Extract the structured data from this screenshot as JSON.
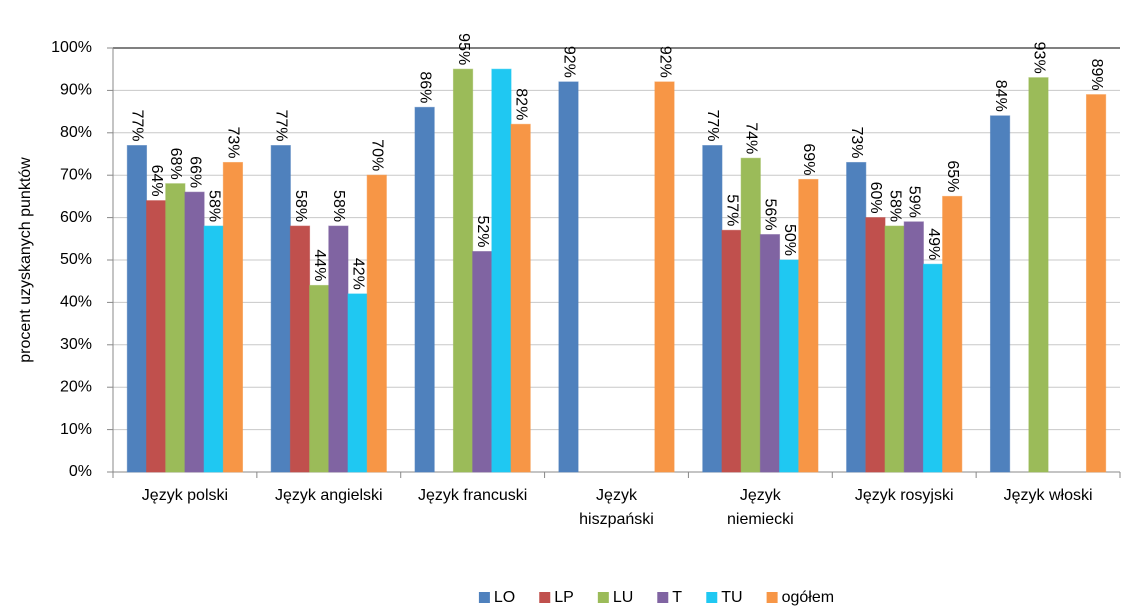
{
  "chart_data": {
    "type": "bar",
    "ylabel": "procent uzyskanych punktów",
    "categories": [
      "Język polski",
      "Język angielski",
      "Język francuski",
      "Język\nhiszpański",
      "Język\nniemiecki",
      "Język rosyjski",
      "Język włoski"
    ],
    "series": [
      {
        "name": "LO",
        "color": "#4f81bd",
        "values": [
          77,
          77,
          86,
          92,
          77,
          73,
          84
        ],
        "value_labels": [
          "77%",
          "77%",
          "86%",
          "92%",
          "77%",
          "73%",
          "84%"
        ]
      },
      {
        "name": "LP",
        "color": "#c0504d",
        "values": [
          64,
          58,
          null,
          null,
          57,
          60,
          null
        ],
        "value_labels": [
          "64%",
          "58%",
          null,
          null,
          "57%",
          "60%",
          null
        ]
      },
      {
        "name": "LU",
        "color": "#9bbb59",
        "values": [
          68,
          44,
          95,
          null,
          74,
          58,
          93
        ],
        "value_labels": [
          "68%",
          "44%",
          "95%",
          null,
          "74%",
          "58%",
          "93%"
        ]
      },
      {
        "name": "T",
        "color": "#8064a2",
        "values": [
          66,
          58,
          52,
          null,
          56,
          59,
          null
        ],
        "value_labels": [
          "66%",
          "58%",
          "52%",
          null,
          "56%",
          "59%",
          null
        ]
      },
      {
        "name": "TU",
        "color": "#1fc8f2",
        "values": [
          58,
          42,
          95,
          null,
          50,
          49,
          null
        ],
        "value_labels": [
          "58%",
          "42%",
          null,
          null,
          "50%",
          "49%",
          null
        ]
      },
      {
        "name": "ogółem",
        "color": "#f79646",
        "values": [
          73,
          70,
          82,
          92,
          69,
          65,
          89
        ],
        "value_labels": [
          "73%",
          "70%",
          "82%",
          "92%",
          "69%",
          "65%",
          "89%"
        ]
      }
    ],
    "ylim": [
      0,
      100
    ],
    "yticks": [
      {
        "value": 0,
        "label": "0%"
      },
      {
        "value": 10,
        "label": "10%"
      },
      {
        "value": 20,
        "label": "20%"
      },
      {
        "value": 30,
        "label": "30%"
      },
      {
        "value": 40,
        "label": "40%"
      },
      {
        "value": 50,
        "label": "50%"
      },
      {
        "value": 60,
        "label": "60%"
      },
      {
        "value": 70,
        "label": "70%"
      },
      {
        "value": 80,
        "label": "80%"
      },
      {
        "value": 90,
        "label": "90%"
      },
      {
        "value": 100,
        "label": "100%"
      }
    ],
    "grid": true,
    "legend": "bottom"
  }
}
